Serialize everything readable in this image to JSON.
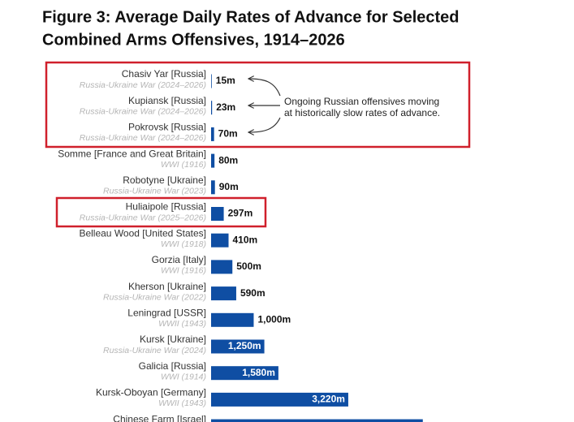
{
  "chart_data": {
    "type": "bar",
    "orientation": "horizontal",
    "title": [
      "Figure 3: Average Daily Rates of Advance for Selected",
      "Combined Arms Offensives, 1914–2026"
    ],
    "categories": [
      "Chasiv Yar [Russia]",
      "Kupiansk [Russia]",
      "Pokrovsk [Russia]",
      "Somme [France and Great Britain]",
      "Robotyne [Ukraine]",
      "Huliaipole [Russia]",
      "Belleau Wood [United States]",
      "Gorzia [Italy]",
      "Kherson [Ukraine]",
      "Leningrad [USSR]",
      "Kursk [Ukraine]",
      "Galicia [Russia]",
      "Kursk-Oboyan [Germany]",
      "Chinese Farm [Israel]"
    ],
    "subtitles": [
      "Russia-Ukraine War (2024–2026)",
      "Russia-Ukraine War (2024–2026)",
      "Russia-Ukraine War (2024–2026)",
      "WWI (1916)",
      "Russia-Ukraine War (2023)",
      "Russia-Ukraine War (2025–2026)",
      "WWI (1918)",
      "WWI (1916)",
      "Russia-Ukraine War (2022)",
      "WWII (1943)",
      "Russia-Ukraine War (2024)",
      "WWI (1914)",
      "WWII (1943)",
      null
    ],
    "values": [
      15,
      23,
      70,
      80,
      90,
      297,
      410,
      500,
      590,
      1000,
      1250,
      1580,
      3220,
      4970
    ],
    "value_labels": [
      "15m",
      "23m",
      "70m",
      "80m",
      "90m",
      "297m",
      "410m",
      "500m",
      "590m",
      "1,000m",
      "1,250m",
      "1,580m",
      "3,220m",
      null
    ],
    "color": "#0f4ea3",
    "xlim": [
      0,
      8500
    ],
    "annotation": [
      "Ongoing Russian offensives moving",
      "at historically slow rates of advance."
    ]
  }
}
